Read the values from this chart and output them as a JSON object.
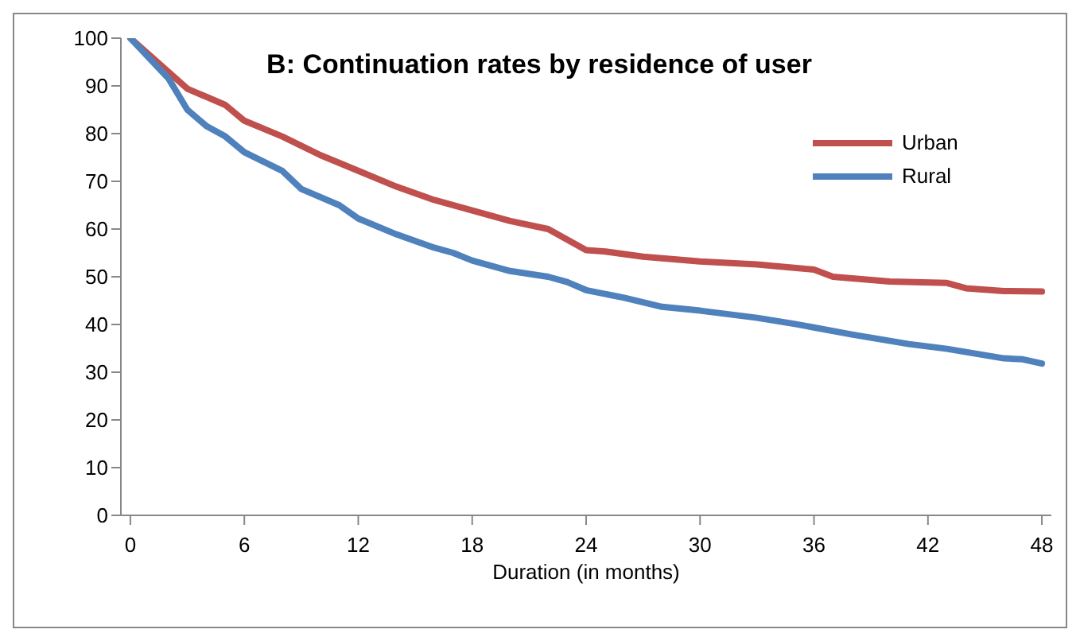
{
  "chart_data": {
    "type": "line",
    "title": "B: Continuation rates by residence of user",
    "xlabel": "Duration (in months)",
    "xlim": [
      -0.5,
      48.5
    ],
    "xticks": [
      0,
      6,
      12,
      18,
      24,
      30,
      36,
      42,
      48
    ],
    "ylim": [
      0,
      100
    ],
    "yticks": [
      0,
      10,
      20,
      30,
      40,
      50,
      60,
      70,
      80,
      90,
      100
    ],
    "grid": false,
    "legend": "top right",
    "marker": "none",
    "line_style": "solid",
    "series": [
      {
        "name": "Urban",
        "color": "#c0504d",
        "x": [
          0,
          3,
          5,
          6,
          8,
          10,
          12,
          14,
          16,
          18,
          20,
          22,
          24,
          25,
          27,
          30,
          33,
          36,
          37,
          40,
          43,
          44,
          46,
          48
        ],
        "values": [
          100,
          89.4,
          86,
          82.7,
          79.4,
          75.5,
          72.2,
          68.9,
          66.1,
          63.9,
          61.7,
          60,
          55.6,
          55.3,
          54.2,
          53.2,
          52.6,
          51.5,
          50,
          49,
          48.7,
          47.6,
          47,
          46.9
        ]
      },
      {
        "name": "Rural",
        "color": "#4f81bd",
        "x": [
          0,
          2,
          3,
          4,
          5,
          6,
          8,
          9,
          11,
          12,
          14,
          16,
          17,
          18,
          20,
          22,
          23,
          24,
          26,
          28,
          30,
          33,
          35,
          38,
          41,
          43,
          46,
          47,
          48
        ],
        "values": [
          100,
          91.6,
          85,
          81.6,
          79.4,
          76.1,
          72.2,
          68.4,
          65,
          62.2,
          58.9,
          56.1,
          55,
          53.4,
          51.2,
          50,
          48.9,
          47.2,
          45.6,
          43.7,
          42.9,
          41.4,
          40.1,
          37.9,
          35.9,
          34.9,
          32.9,
          32.7,
          31.8
        ]
      }
    ]
  }
}
